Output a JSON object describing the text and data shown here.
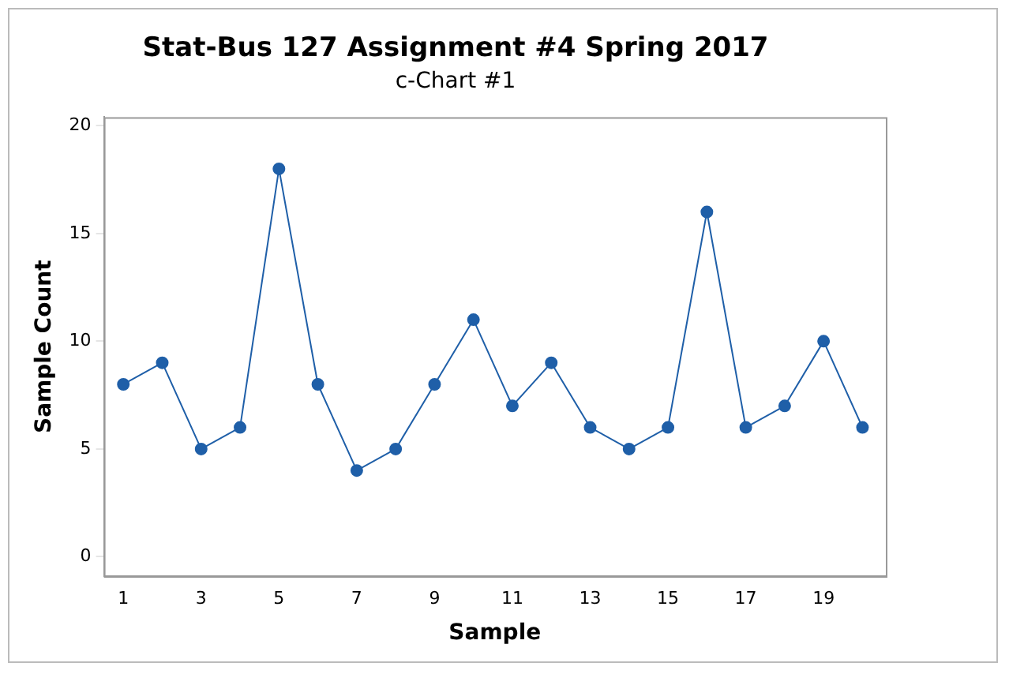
{
  "chart_data": {
    "type": "line",
    "title": "Stat-Bus 127 Assignment #4 Spring 2017",
    "subtitle": "c-Chart #1",
    "xlabel": "Sample",
    "ylabel": "Sample Count",
    "x": [
      1,
      2,
      3,
      4,
      5,
      6,
      7,
      8,
      9,
      10,
      11,
      12,
      13,
      14,
      15,
      16,
      17,
      18,
      19,
      20
    ],
    "series": [
      {
        "color": "#1f5fa8",
        "values": [
          8,
          9,
          5,
          6,
          18,
          8,
          4,
          5,
          8,
          11,
          7,
          9,
          6,
          5,
          6,
          16,
          6,
          7,
          10,
          6
        ]
      }
    ],
    "xlim": [
      0.5,
      20.6
    ],
    "xticks": [
      1,
      3,
      5,
      7,
      9,
      11,
      13,
      15,
      17,
      19
    ],
    "ylim": [
      -0.9,
      20.4
    ],
    "yticks": [
      0,
      5,
      10,
      15,
      20
    ],
    "grid": false,
    "legend": false,
    "marker": "circle",
    "line_style": "solid"
  }
}
